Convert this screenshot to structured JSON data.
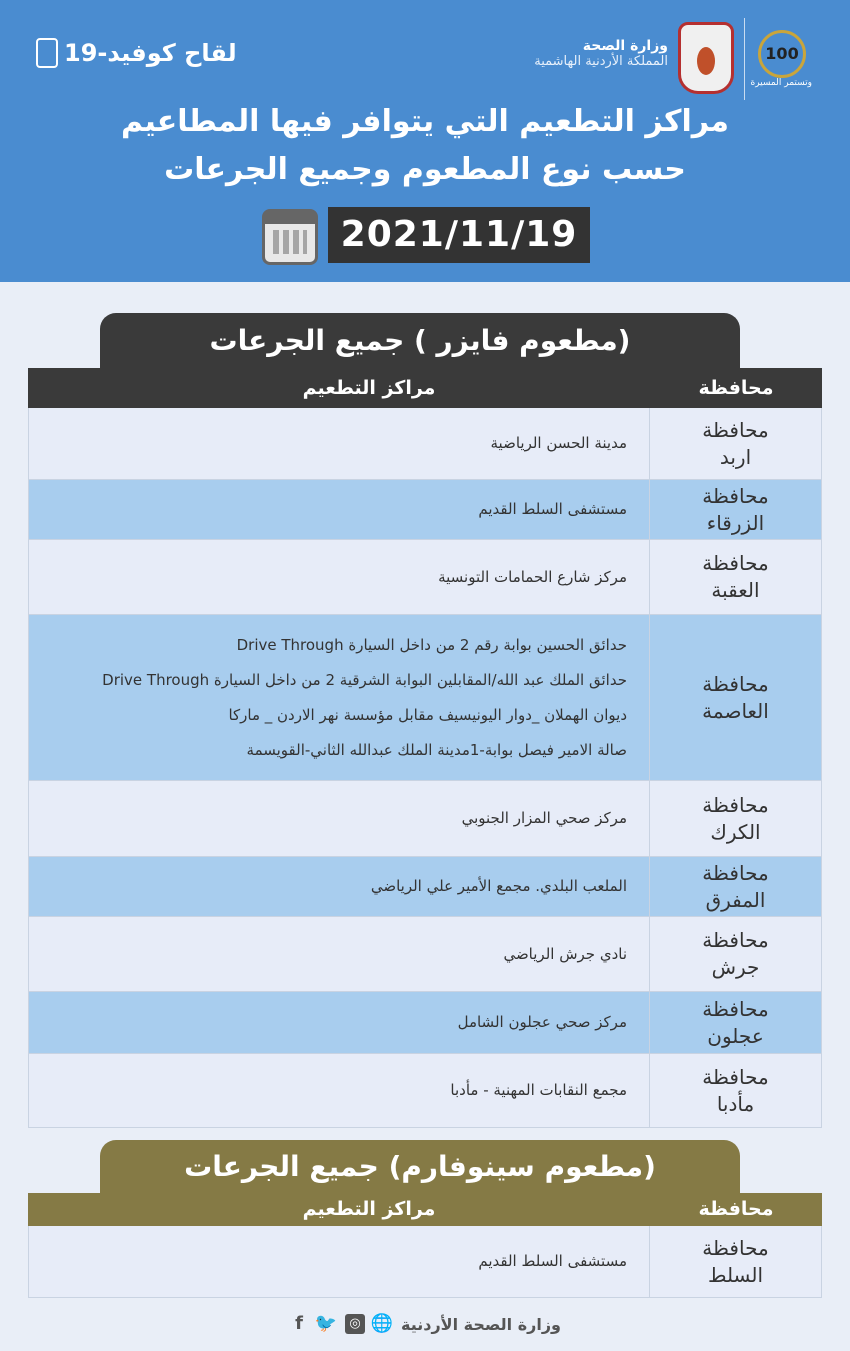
{
  "header": {
    "covid_label": "لقاح كوفيد-19",
    "ministry_name": "وزارة الصحة",
    "kingdom": "المملكة الأردنية الهاشمية",
    "centennial_number": "100",
    "centennial_tagline": "وتستمر المسيرة",
    "title_line1": "مراكز التطعيم التي يتوافر فيها المطاعيم",
    "title_line2": "حسب نوع المطعوم وجميع الجرعات",
    "date": "2021/11/19"
  },
  "colors": {
    "header": "#4a8cd0",
    "pfizer": "#3a3a3a",
    "sinopharm": "#857a45",
    "row_light": "#e7ecf8",
    "row_blue": "#a8cdee"
  },
  "sections": [
    {
      "title": "(مطعوم فايزر ) جميع الجرعات",
      "col_gov": "محافظة",
      "col_centers": "مراكز التطعيم",
      "rows": [
        {
          "gov1": "محافظة",
          "gov2": "اربد",
          "centers": [
            "مدينة الحسن الرياضية"
          ]
        },
        {
          "gov1": "محافظة",
          "gov2": "الزرقاء",
          "centers": [
            "مستشفى السلط القديم"
          ]
        },
        {
          "gov1": "محافظة",
          "gov2": "العقبة",
          "centers": [
            "مركز شارع الحمامات التونسية"
          ]
        },
        {
          "gov1": "محافظة",
          "gov2": "العاصمة",
          "centers": [
            "حدائق الحسين بوابة رقم 2 من داخل السيارة Drive Through",
            "حدائق الملك عبد الله/المقابلين البوابة الشرقية 2 من داخل السيارة Drive Through",
            "ديوان الهملان _دوار اليونيسيف مقابل مؤسسة نهر الاردن _ ماركا",
            "صالة الامير فيصل بوابة-1مدينة الملك عبدالله الثاني-القويسمة"
          ]
        },
        {
          "gov1": "محافظة",
          "gov2": "الكرك",
          "centers": [
            "مركز صحي المزار الجنوبي"
          ]
        },
        {
          "gov1": "محافظة",
          "gov2": "المفرق",
          "centers": [
            "الملعب البلدي. مجمع الأمير علي الرياضي"
          ]
        },
        {
          "gov1": "محافظة",
          "gov2": "جرش",
          "centers": [
            "نادي جرش الرياضي"
          ]
        },
        {
          "gov1": "محافظة",
          "gov2": "عجلون",
          "centers": [
            "مركز صحي عجلون الشامل"
          ]
        },
        {
          "gov1": "محافظة",
          "gov2": "مأدبا",
          "centers": [
            "مجمع النقابات المهنية - مأدبا"
          ]
        }
      ]
    },
    {
      "title": "(مطعوم سينوفارم) جميع الجرعات",
      "col_gov": "محافظة",
      "col_centers": "مراكز التطعيم",
      "rows": [
        {
          "gov1": "محافظة",
          "gov2": "السلط",
          "centers": [
            "مستشفى السلط القديم"
          ]
        }
      ]
    }
  ],
  "footer": {
    "text": "وزارة الصحة الأردنية",
    "icons": [
      "globe-icon",
      "instagram-icon",
      "twitter-icon",
      "facebook-icon"
    ]
  }
}
